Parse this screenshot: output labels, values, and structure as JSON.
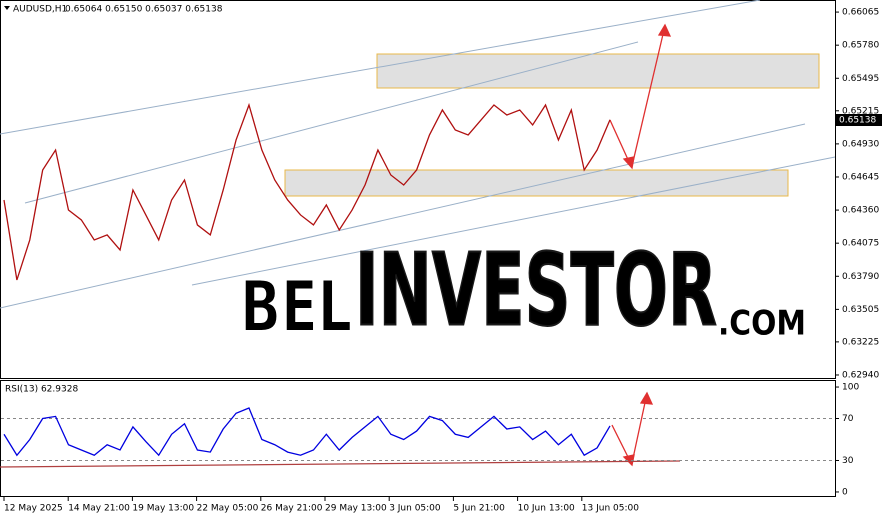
{
  "header": {
    "symbol": "AUDUSD,H1",
    "ohlc": "0.65064 0.65150 0.65037 0.65138",
    "last_price": "0.65138"
  },
  "time_labels": [
    "12 May 2025",
    "14 May 21:00",
    "19 May 13:00",
    "22 May 05:00",
    "26 May 21:00",
    "29 May 13:00",
    "3 Jun 05:00",
    "5 Jun 21:00",
    "10 Jun 13:00",
    "13 Jun 05:00"
  ],
  "logo": {
    "part1": "BEL",
    "part2": "INVESTOR",
    "part3": ".COM"
  },
  "chart_data": [
    {
      "type": "line",
      "name": "AUDUSD,H1",
      "color": "#b01010",
      "values": [
        0.64447,
        0.63758,
        0.64103,
        0.64705,
        0.64877,
        0.64361,
        0.64275,
        0.64103,
        0.64146,
        0.64017,
        0.64533,
        0.64318,
        0.64103,
        0.64447,
        0.64619,
        0.64232,
        0.64146,
        0.64533,
        0.64964,
        0.65265,
        0.64877,
        0.64619,
        0.64447,
        0.64318,
        0.64232,
        0.64404,
        0.64189,
        0.64361,
        0.64576,
        0.64877,
        0.64662,
        0.64576,
        0.64705,
        0.65007,
        0.65222,
        0.6505,
        0.65007,
        0.65136,
        0.65265,
        0.65179,
        0.65222,
        0.65093,
        0.65265,
        0.64964,
        0.65222,
        0.64705,
        0.64877,
        0.65138
      ],
      "ylim": [
        0.62914,
        0.66169
      ],
      "yticks": [
        0.66065,
        {
          "value": 0.6578,
          "label": "0.65780"
        },
        0.65495,
        0.65215,
        {
          "value": 0.6493,
          "label": "0.64930"
        },
        0.64645,
        {
          "value": 0.6436,
          "label": "0.64360"
        },
        0.64075,
        {
          "value": 0.6379,
          "label": "0.63790"
        },
        0.63505,
        0.63225,
        {
          "value": 0.6294,
          "label": "0.62940"
        }
      ]
    },
    {
      "type": "line",
      "name": "RSI(13) 62.9328",
      "color": "#0000e0",
      "values": [
        55,
        35,
        50,
        70,
        72,
        45,
        40,
        35,
        45,
        40,
        62,
        48,
        35,
        55,
        65,
        40,
        38,
        60,
        75,
        80,
        50,
        45,
        38,
        35,
        40,
        55,
        40,
        52,
        62,
        72,
        55,
        50,
        58,
        72,
        68,
        55,
        52,
        62,
        72,
        60,
        62,
        50,
        58,
        45,
        55,
        35,
        42,
        62.93
      ],
      "ylim": [
        -4.8,
        106.7
      ],
      "yticks": [
        100,
        70,
        30,
        0
      ]
    }
  ]
}
